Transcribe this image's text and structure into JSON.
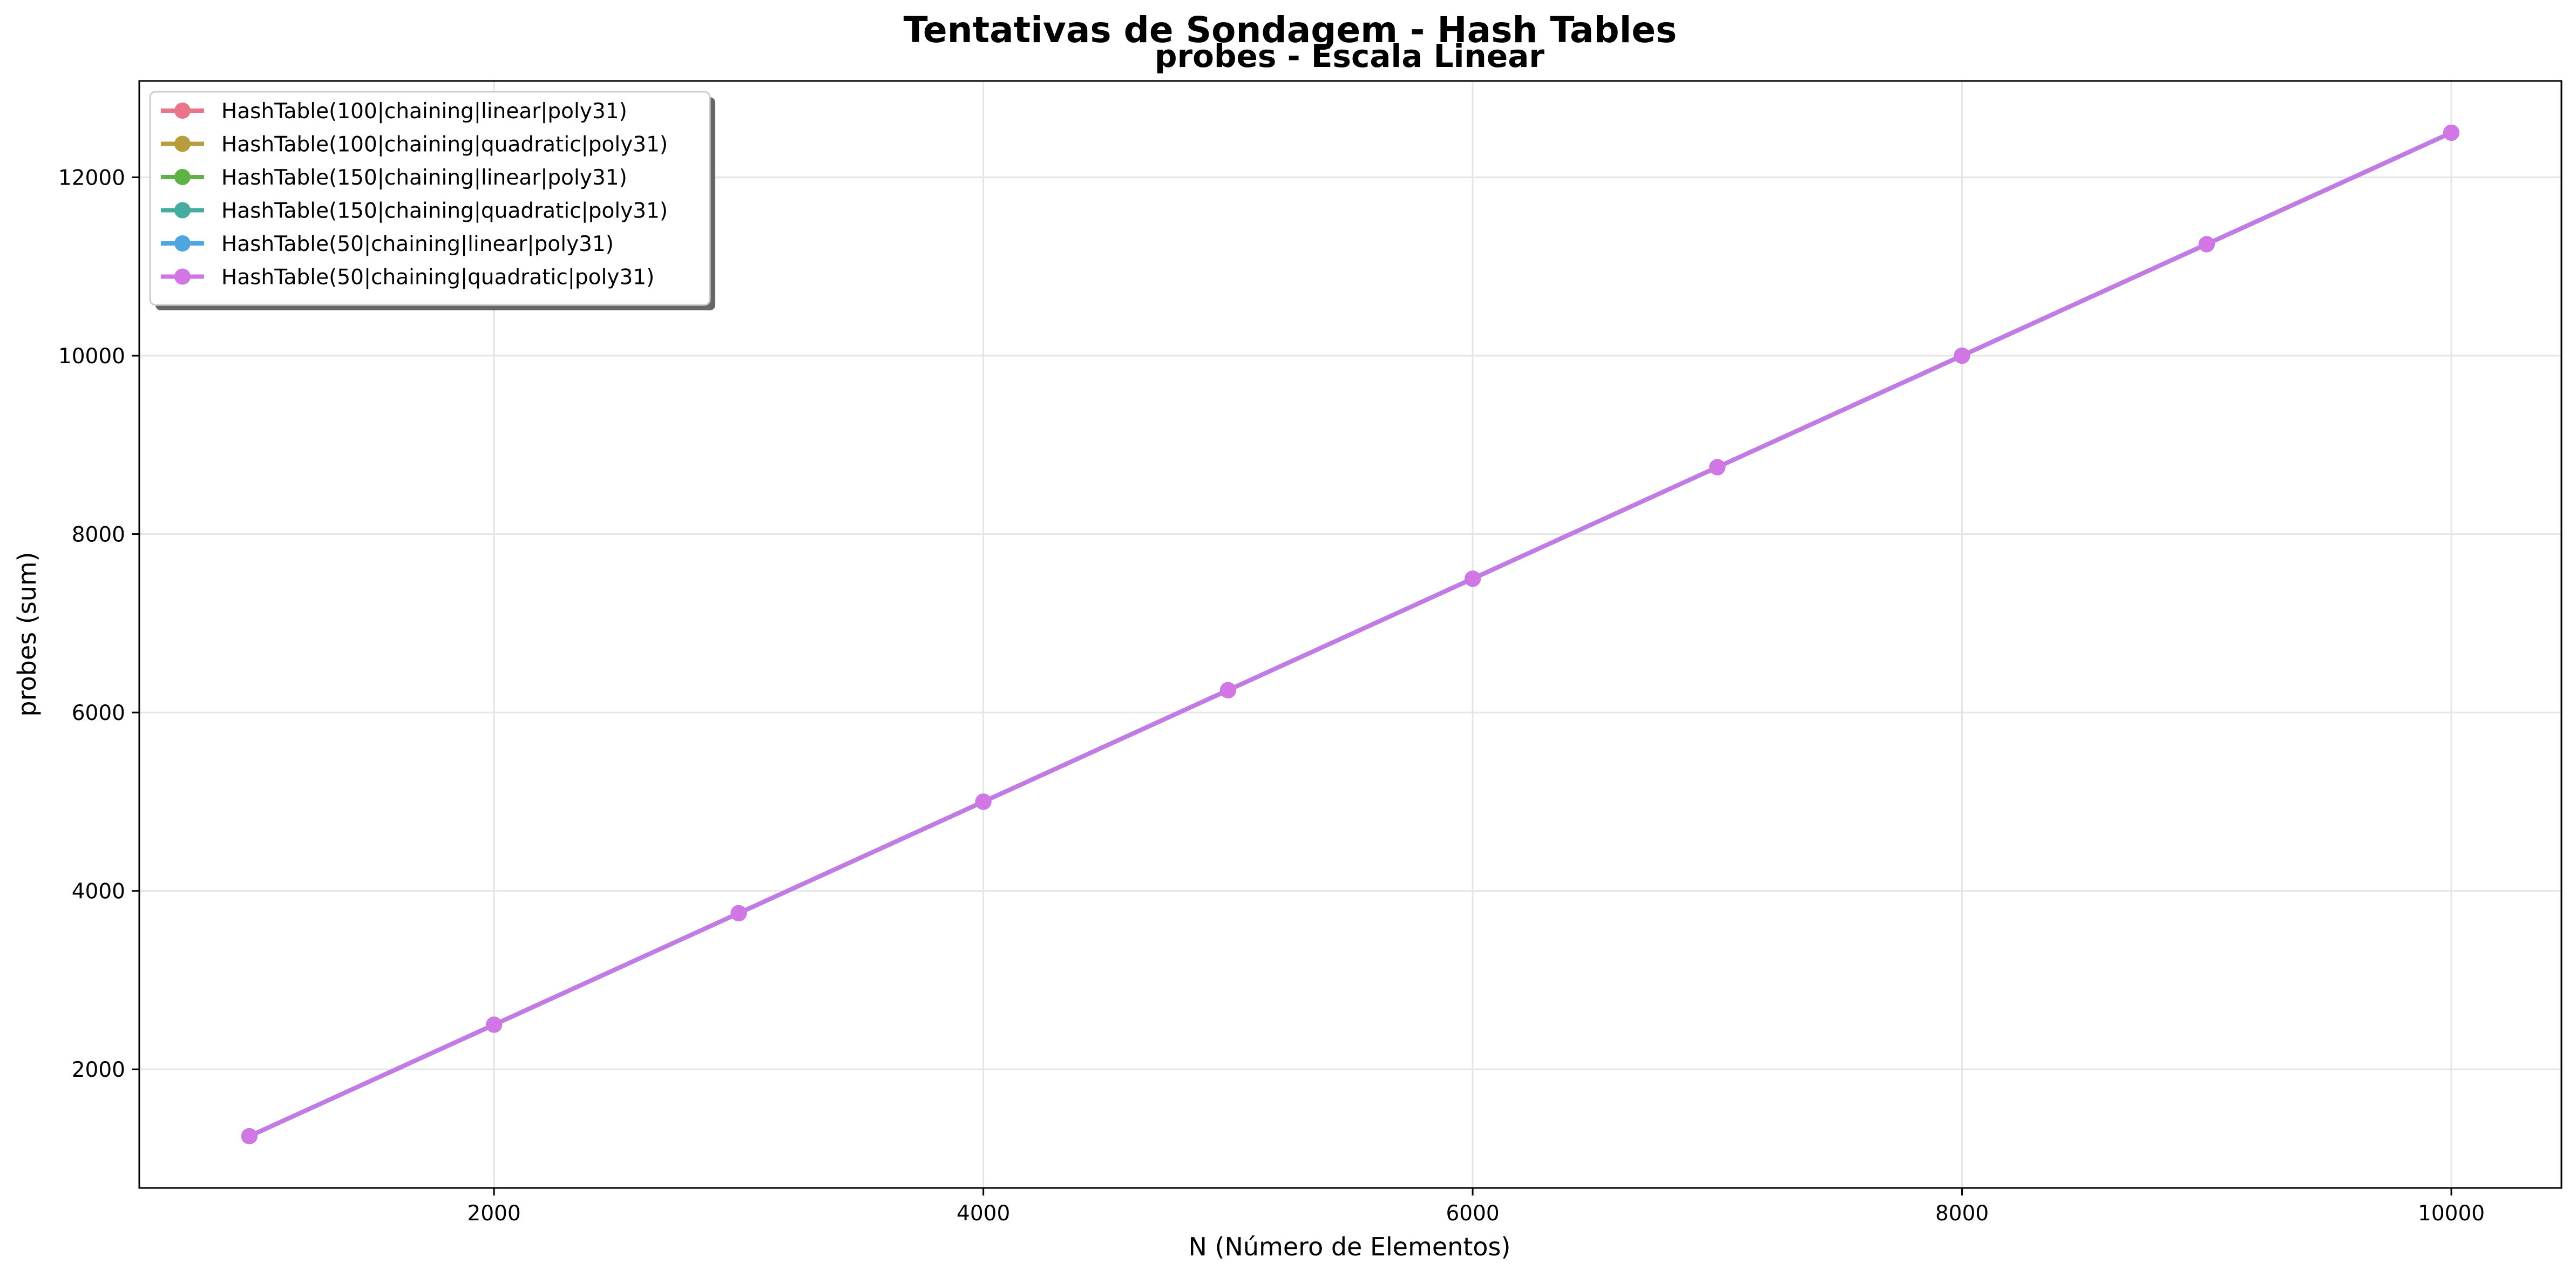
{
  "chart_data": {
    "type": "line",
    "suptitle": "Tentativas de Sondagem - Hash Tables",
    "title": "probes - Escala Linear",
    "xlabel": "N (Número de Elementos)",
    "ylabel": "probes (sum)",
    "xlim": [
      550,
      10450
    ],
    "ylim": [
      670,
      13080
    ],
    "xticks": [
      2000,
      4000,
      6000,
      8000,
      10000
    ],
    "yticks": [
      2000,
      4000,
      6000,
      8000,
      10000,
      12000
    ],
    "grid": true,
    "legend_position": "top-left",
    "x": [
      1000,
      2000,
      3000,
      4000,
      5000,
      6000,
      7000,
      8000,
      9000,
      10000
    ],
    "series": [
      {
        "name": "HashTable(100|chaining|linear|poly31)",
        "color": "#e8758a",
        "values": [
          1250,
          2500,
          3750,
          5000,
          6250,
          7500,
          8750,
          10000,
          11250,
          12500
        ]
      },
      {
        "name": "HashTable(100|chaining|quadratic|poly31)",
        "color": "#b89d3e",
        "values": [
          1250,
          2500,
          3750,
          5000,
          6250,
          7500,
          8750,
          10000,
          11250,
          12500
        ]
      },
      {
        "name": "HashTable(150|chaining|linear|poly31)",
        "color": "#5fb346",
        "values": [
          1250,
          2500,
          3750,
          5000,
          6250,
          7500,
          8750,
          10000,
          11250,
          12500
        ]
      },
      {
        "name": "HashTable(150|chaining|quadratic|poly31)",
        "color": "#44ada0",
        "values": [
          1250,
          2500,
          3750,
          5000,
          6250,
          7500,
          8750,
          10000,
          11250,
          12500
        ]
      },
      {
        "name": "HashTable(50|chaining|linear|poly31)",
        "color": "#4fa6de",
        "values": [
          1250,
          2500,
          3750,
          5000,
          6250,
          7500,
          8750,
          10000,
          11250,
          12500
        ]
      },
      {
        "name": "HashTable(50|chaining|quadratic|poly31)",
        "color": "#d276e6",
        "values": [
          1250,
          2500,
          3750,
          5000,
          6250,
          7500,
          8750,
          10000,
          11250,
          12500
        ]
      }
    ]
  }
}
